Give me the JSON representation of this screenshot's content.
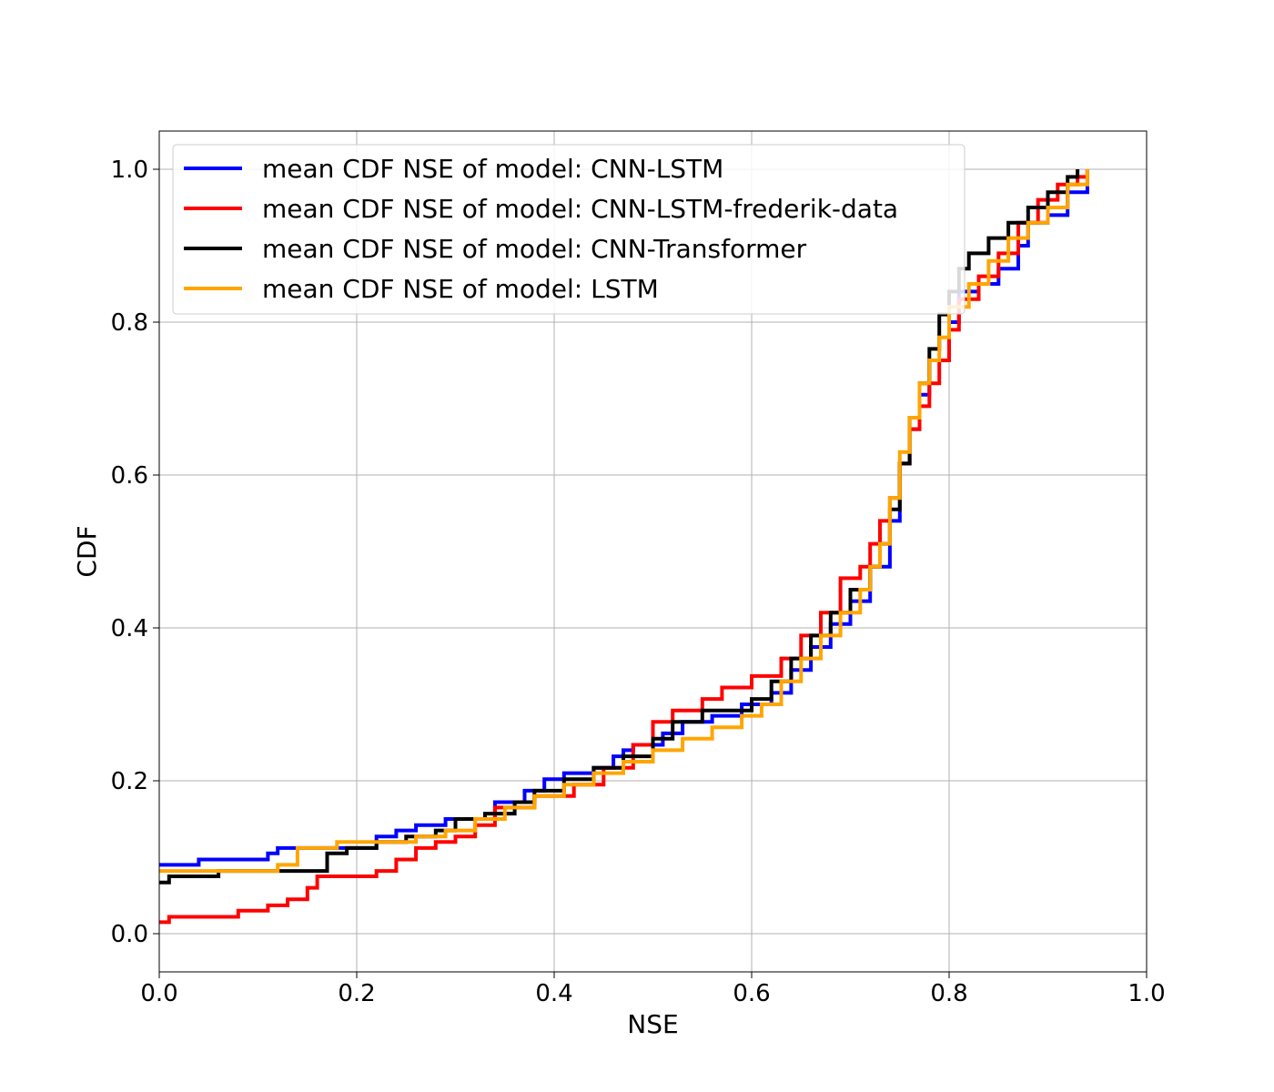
{
  "chart_data": {
    "type": "line",
    "title": "",
    "xlabel": "NSE",
    "ylabel": "CDF",
    "xlim": [
      0.0,
      1.0
    ],
    "ylim": [
      -0.05,
      1.05
    ],
    "xticks": [
      0.0,
      0.2,
      0.4,
      0.6,
      0.8,
      1.0
    ],
    "xtick_labels": [
      "0.0",
      "0.2",
      "0.4",
      "0.6",
      "0.8",
      "1.0"
    ],
    "yticks": [
      0.0,
      0.2,
      0.4,
      0.6,
      0.8,
      1.0
    ],
    "ytick_labels": [
      "0.0",
      "0.2",
      "0.4",
      "0.6",
      "0.8",
      "1.0"
    ],
    "grid": true,
    "legend_position": "top-left",
    "series": [
      {
        "name": "mean CDF NSE of model: CNN-LSTM",
        "color": "#0000ff",
        "x": [
          0.0,
          0.04,
          0.11,
          0.12,
          0.16,
          0.22,
          0.24,
          0.26,
          0.29,
          0.3,
          0.34,
          0.37,
          0.39,
          0.41,
          0.44,
          0.46,
          0.47,
          0.48,
          0.51,
          0.53,
          0.56,
          0.59,
          0.62,
          0.64,
          0.66,
          0.68,
          0.7,
          0.72,
          0.74,
          0.75,
          0.76,
          0.77,
          0.78,
          0.8,
          0.81,
          0.83,
          0.85,
          0.87,
          0.88,
          0.9,
          0.92,
          0.94
        ],
        "y": [
          0.09,
          0.097,
          0.105,
          0.112,
          0.112,
          0.127,
          0.135,
          0.142,
          0.15,
          0.15,
          0.172,
          0.187,
          0.202,
          0.21,
          0.217,
          0.232,
          0.24,
          0.247,
          0.262,
          0.277,
          0.285,
          0.3,
          0.315,
          0.345,
          0.375,
          0.405,
          0.435,
          0.48,
          0.54,
          0.615,
          0.66,
          0.705,
          0.75,
          0.8,
          0.84,
          0.85,
          0.87,
          0.9,
          0.93,
          0.94,
          0.97,
          1.0
        ]
      },
      {
        "name": "mean CDF NSE of model: CNN-LSTM-frederik-data",
        "color": "#ff0000",
        "x": [
          0.0,
          0.01,
          0.08,
          0.11,
          0.13,
          0.15,
          0.16,
          0.18,
          0.22,
          0.24,
          0.26,
          0.28,
          0.3,
          0.32,
          0.34,
          0.38,
          0.42,
          0.45,
          0.48,
          0.5,
          0.52,
          0.55,
          0.57,
          0.6,
          0.63,
          0.65,
          0.67,
          0.69,
          0.71,
          0.72,
          0.73,
          0.74,
          0.75,
          0.76,
          0.77,
          0.78,
          0.79,
          0.8,
          0.81,
          0.83,
          0.85,
          0.87,
          0.89,
          0.91,
          0.93,
          0.94
        ],
        "y": [
          0.015,
          0.022,
          0.03,
          0.037,
          0.045,
          0.06,
          0.075,
          0.075,
          0.082,
          0.097,
          0.112,
          0.12,
          0.127,
          0.142,
          0.165,
          0.18,
          0.195,
          0.217,
          0.247,
          0.277,
          0.292,
          0.307,
          0.322,
          0.337,
          0.36,
          0.39,
          0.42,
          0.465,
          0.48,
          0.51,
          0.54,
          0.57,
          0.615,
          0.66,
          0.69,
          0.72,
          0.75,
          0.79,
          0.83,
          0.86,
          0.89,
          0.93,
          0.96,
          0.98,
          0.99,
          1.0
        ]
      },
      {
        "name": "mean CDF NSE of model: CNN-Transformer",
        "color": "#000000",
        "x": [
          0.0,
          0.01,
          0.06,
          0.12,
          0.17,
          0.19,
          0.22,
          0.25,
          0.28,
          0.3,
          0.33,
          0.36,
          0.38,
          0.41,
          0.44,
          0.47,
          0.5,
          0.52,
          0.55,
          0.58,
          0.6,
          0.62,
          0.64,
          0.66,
          0.68,
          0.7,
          0.72,
          0.73,
          0.74,
          0.75,
          0.76,
          0.77,
          0.78,
          0.79,
          0.8,
          0.81,
          0.82,
          0.84,
          0.86,
          0.88,
          0.9,
          0.92,
          0.93
        ],
        "y": [
          0.067,
          0.075,
          0.082,
          0.082,
          0.105,
          0.112,
          0.12,
          0.127,
          0.135,
          0.15,
          0.157,
          0.172,
          0.187,
          0.202,
          0.217,
          0.232,
          0.255,
          0.277,
          0.292,
          0.292,
          0.307,
          0.33,
          0.36,
          0.39,
          0.42,
          0.45,
          0.48,
          0.51,
          0.555,
          0.615,
          0.675,
          0.72,
          0.765,
          0.81,
          0.84,
          0.87,
          0.89,
          0.91,
          0.93,
          0.95,
          0.97,
          0.99,
          1.0
        ]
      },
      {
        "name": "mean CDF NSE of model: LSTM",
        "color": "#ffa500",
        "x": [
          0.0,
          0.06,
          0.12,
          0.14,
          0.18,
          0.22,
          0.26,
          0.29,
          0.32,
          0.35,
          0.38,
          0.41,
          0.44,
          0.47,
          0.5,
          0.53,
          0.56,
          0.59,
          0.61,
          0.63,
          0.65,
          0.67,
          0.69,
          0.71,
          0.72,
          0.73,
          0.74,
          0.75,
          0.76,
          0.77,
          0.78,
          0.79,
          0.8,
          0.82,
          0.84,
          0.86,
          0.88,
          0.9,
          0.92,
          0.94
        ],
        "y": [
          0.082,
          0.082,
          0.09,
          0.112,
          0.12,
          0.12,
          0.127,
          0.135,
          0.15,
          0.165,
          0.18,
          0.195,
          0.21,
          0.225,
          0.24,
          0.255,
          0.27,
          0.285,
          0.3,
          0.33,
          0.36,
          0.39,
          0.42,
          0.45,
          0.48,
          0.51,
          0.57,
          0.63,
          0.675,
          0.72,
          0.75,
          0.78,
          0.82,
          0.85,
          0.88,
          0.91,
          0.93,
          0.95,
          0.98,
          1.0
        ]
      }
    ]
  }
}
